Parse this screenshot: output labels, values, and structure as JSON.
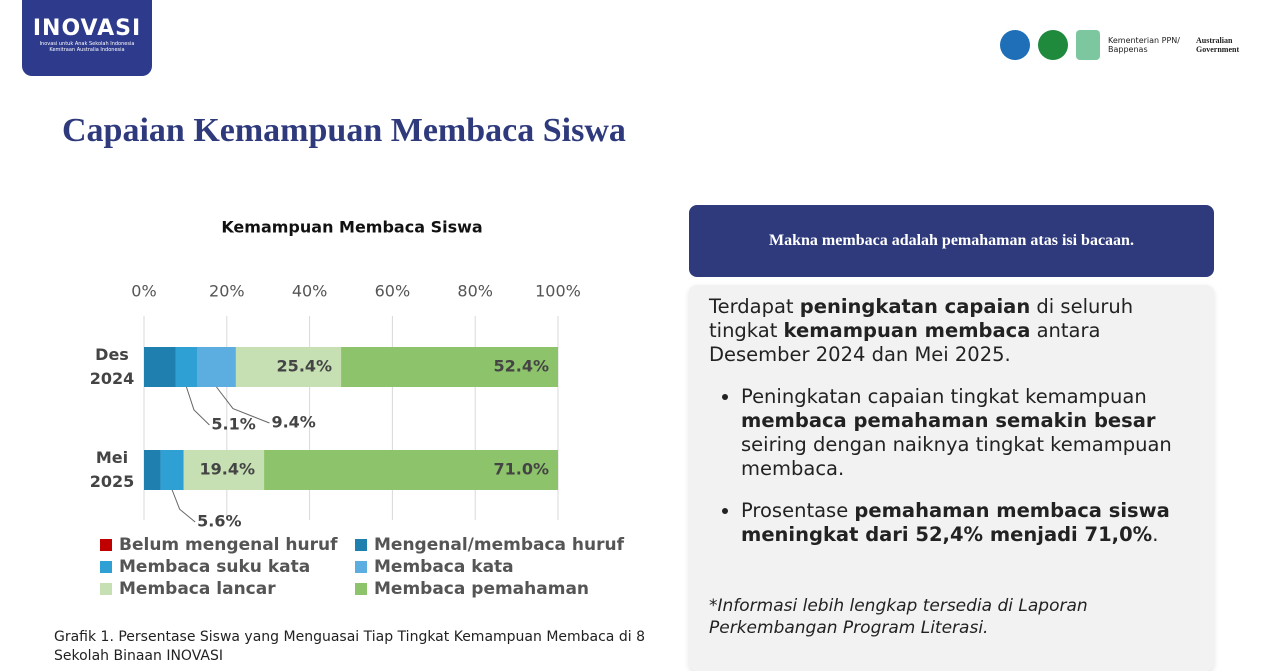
{
  "header": {
    "logo": "INOVASI",
    "logo_tagline": "Inovasi untuk Anak Sekolah Indonesia",
    "logo_subtagline": "Kemitraan Australia Indonesia",
    "partner_1": "Kementerian PPN/ Bappenas",
    "partner_2": "Australian Government"
  },
  "title": "Capaian Kemampuan Membaca Siswa",
  "chart_data": {
    "type": "stacked-bar-horizontal",
    "title": "Kemampuan Membaca Siswa",
    "categories": [
      "Des 2024",
      "Mei 2025"
    ],
    "xlim": [
      0,
      100
    ],
    "xticks": [
      {
        "value": 0,
        "label": "0%"
      },
      {
        "value": 20,
        "label": "20%"
      },
      {
        "value": 40,
        "label": "40%"
      },
      {
        "value": 60,
        "label": "60%"
      },
      {
        "value": 80,
        "label": "80%"
      },
      {
        "value": 100,
        "label": "100%"
      }
    ],
    "grid": true,
    "legend": "bottom",
    "series": [
      {
        "name": "Belum mengenal huruf",
        "color": "#c00000",
        "values": [
          0,
          0
        ]
      },
      {
        "name": "Mengenal/membaca huruf",
        "color": "#1f7fae",
        "values": [
          7.7,
          4.0
        ]
      },
      {
        "name": "Membaca suku kata",
        "color": "#2fa0d3",
        "values": [
          5.1,
          5.6
        ],
        "value_labels": [
          "5.1%",
          "5.6%"
        ]
      },
      {
        "name": "Membaca kata",
        "color": "#5daee0",
        "values": [
          9.4,
          0
        ],
        "value_labels": [
          "9.4%",
          null
        ]
      },
      {
        "name": "Membaca lancar",
        "color": "#c6e0b4",
        "values": [
          25.4,
          19.4
        ],
        "value_labels": [
          "25.4%",
          "19.4%"
        ]
      },
      {
        "name": "Membaca pemahaman",
        "color": "#8dc46b",
        "values": [
          52.4,
          71.0
        ],
        "value_labels": [
          "52.4%",
          "71.0%"
        ]
      }
    ]
  },
  "caption": "Grafik 1. Persentase Siswa yang Menguasai Tiap Tingkat Kemampuan Membaca di 8 Sekolah Binaan INOVASI",
  "panel": {
    "header": "Makna membaca adalah pemahaman atas isi bacaan.",
    "intro": [
      {
        "text": "Terdapat "
      },
      {
        "text": "peningkatan capaian",
        "bold": true
      },
      {
        "text": " di seluruh tingkat "
      },
      {
        "text": "kemampuan membaca",
        "bold": true
      },
      {
        "text": " antara Desember 2024 dan Mei 2025."
      }
    ],
    "bullets": [
      [
        {
          "text": "Peningkatan capaian tingkat kemampuan "
        },
        {
          "text": "membaca pemahaman semakin besar",
          "bold": true
        },
        {
          "text": " seiring dengan naiknya tingkat kemampuan membaca."
        }
      ],
      [
        {
          "text": "Prosentase "
        },
        {
          "text": "pemahaman membaca siswa meningkat dari 52,4% menjadi 71,0%",
          "bold": true
        },
        {
          "text": "."
        }
      ]
    ],
    "note": "*Informasi lebih lengkap tersedia di Laporan Perkembangan Program Literasi."
  }
}
